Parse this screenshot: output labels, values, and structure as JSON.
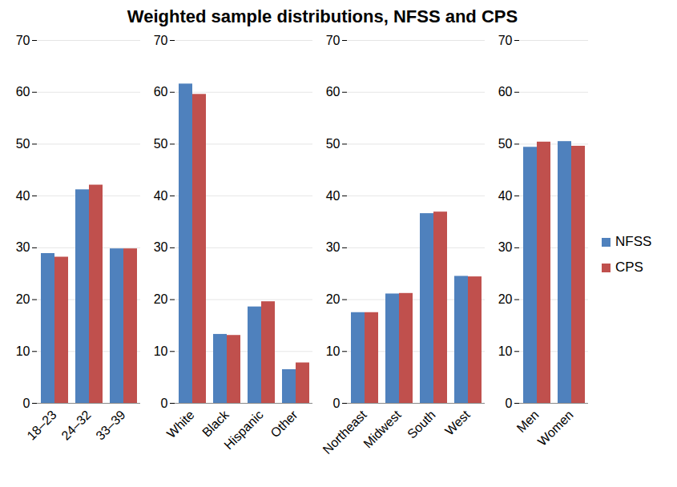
{
  "chart_data": {
    "type": "bar",
    "title": "Weighted sample distributions, NFSS and CPS",
    "categories": [
      "18–23",
      "24–32",
      "33–39",
      null,
      "White",
      "Black",
      "Hispanic",
      "Other",
      null,
      "Northeast",
      "Midwest",
      "South",
      "West",
      null,
      "Men",
      "Women"
    ],
    "series": [
      {
        "name": "NFSS",
        "color": "#4f81bd",
        "values": [
          28.9,
          41.2,
          29.8,
          null,
          61.6,
          13.3,
          18.6,
          6.5,
          null,
          17.5,
          21.1,
          36.6,
          24.5,
          null,
          49.4,
          50.5
        ]
      },
      {
        "name": "CPS",
        "color": "#c0504d",
        "values": [
          28.2,
          42.1,
          29.8,
          null,
          59.6,
          13.1,
          19.6,
          7.8,
          null,
          17.5,
          21.2,
          36.9,
          24.4,
          null,
          50.4,
          49.6
        ]
      }
    ],
    "ylim": [
      0,
      70
    ],
    "yticks": [
      0,
      10,
      20,
      30,
      40,
      50,
      60,
      70
    ],
    "grid": true,
    "legend": "right"
  }
}
